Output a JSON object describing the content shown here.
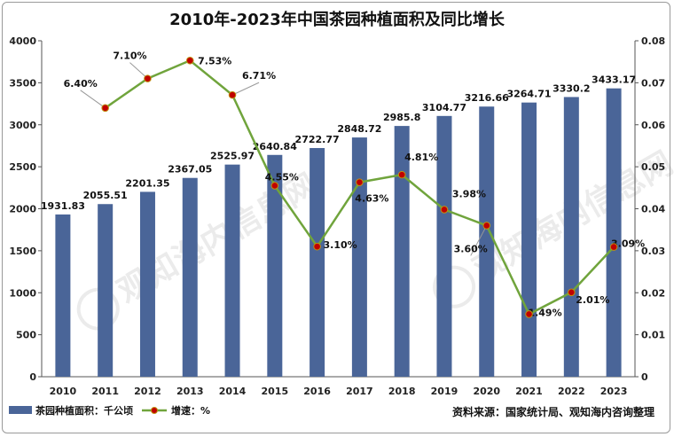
{
  "chart_data": {
    "type": "bar+line",
    "title": "2010年-2023年中国茶园种植面积及同比增长",
    "categories": [
      "2010",
      "2011",
      "2012",
      "2013",
      "2014",
      "2015",
      "2016",
      "2017",
      "2018",
      "2019",
      "2020",
      "2021",
      "2022",
      "2023"
    ],
    "series": [
      {
        "name": "茶园种植面积：千公顷",
        "type": "bar",
        "axis": "left",
        "color": "#4a6598",
        "values": [
          1931.83,
          2055.51,
          2201.35,
          2367.05,
          2525.97,
          2640.84,
          2722.77,
          2848.72,
          2985.8,
          3104.77,
          3216.66,
          3264.71,
          3330.2,
          3433.17
        ],
        "labels": [
          "1931.83",
          "2055.51",
          "2201.35",
          "2367.05",
          "2525.97",
          "2640.84",
          "2722.77",
          "2848.72",
          "2985.8",
          "3104.77",
          "3216.66",
          "3264.71",
          "3330.2",
          "3433.17"
        ]
      },
      {
        "name": "增速：%",
        "type": "line",
        "axis": "right",
        "color": "#70a43c",
        "marker_color": "#c00000",
        "values": [
          null,
          0.064,
          0.071,
          0.0753,
          0.0671,
          0.0455,
          0.031,
          0.0463,
          0.0481,
          0.0398,
          0.036,
          0.0149,
          0.0201,
          0.0309
        ],
        "labels": [
          "",
          "6.40%",
          "7.10%",
          "7.53%",
          "6.71%",
          "4.55%",
          "3.10%",
          "4.63%",
          "4.81%",
          "3.98%",
          "3.60%",
          "1.49%",
          "2.01%",
          "3.09%"
        ]
      }
    ],
    "y_left": {
      "min": 0,
      "max": 4000,
      "ticks": [
        "0",
        "500",
        "1000",
        "1500",
        "2000",
        "2500",
        "3000",
        "3500",
        "4000"
      ]
    },
    "y_right": {
      "min": 0,
      "max": 0.08,
      "ticks": [
        "0",
        "0.01",
        "0.02",
        "0.03",
        "0.04",
        "0.05",
        "0.06",
        "0.07",
        "0.08"
      ]
    },
    "grid": false,
    "legend": "bottom-left"
  },
  "watermark": "观知海内信息网",
  "source": "资料来源：国家统计局、观知海内咨询整理"
}
